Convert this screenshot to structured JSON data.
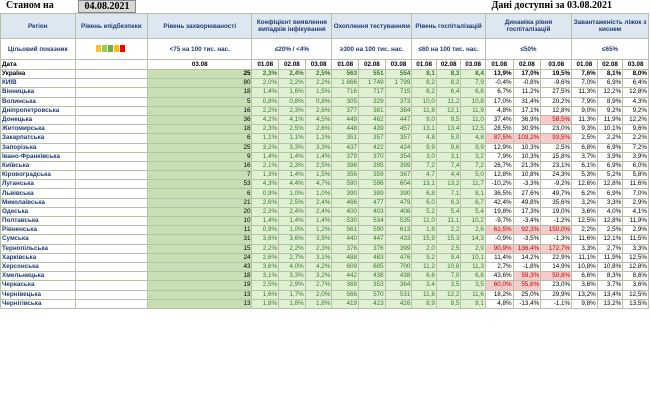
{
  "header": {
    "as_of_label": "Станом на",
    "as_of_date": "04.08.2021",
    "available_label": "Дані доступні за 03.08.2021"
  },
  "columns": {
    "region": "Регіон",
    "level": "Рівень епідбезпеки",
    "incidence": "Рівень захворюваності",
    "detection": "Коефіцієнт виявлення випадків інфікування",
    "testing": "Охоплення тестуванням",
    "hosp": "Рівень госпіталізацій",
    "dyn": "Динаміка рівня госпіталізацій",
    "beds": "Завантаженість ліжок з киснем"
  },
  "targets": {
    "label": "Цільовий показник",
    "incidence": "<75 на 100 тис. нас.",
    "detection": "≤20% / <4%",
    "testing": "≥300 на 100 тис. нас.",
    "hosp": "≤60 на 100 тис. нас.",
    "dyn": "≤50%",
    "beds": "≤65%"
  },
  "lamp_colors": [
    "#f4c430",
    "#92d050",
    "#70ad47",
    "#ffc000",
    "#ff0000"
  ],
  "date_row": {
    "label": "Дата",
    "d1": "03.08",
    "d2": "01.08",
    "d3": "02.08",
    "d4": "03.08"
  },
  "rows": [
    {
      "r": "Україна",
      "l": "",
      "i": "25",
      "det": [
        "2,3%",
        "2,4%",
        "2,5%"
      ],
      "t": [
        "563",
        "551",
        "554"
      ],
      "h": [
        "8,1",
        "8,3",
        "8,4"
      ],
      "dy": [
        "13,9%",
        "17,0%",
        "19,5%"
      ],
      "b": [
        "7,6%",
        "8,1%",
        "8,0%"
      ]
    },
    {
      "r": "КИЇВ",
      "l": "",
      "i": "80",
      "det": [
        "2,0%",
        "2,2%",
        "2,2%"
      ],
      "t": [
        "1 866",
        "1 749",
        "1 799"
      ],
      "h": [
        "8,2",
        "8,2",
        "7,9"
      ],
      "dy": [
        "-0,4%",
        "-0,8%",
        "-9,6%"
      ],
      "b": [
        "7,0%",
        "6,9%",
        "6,4%"
      ]
    },
    {
      "r": "Вінницька",
      "l": "",
      "i": "18",
      "det": [
        "1,4%",
        "1,6%",
        "1,5%"
      ],
      "t": [
        "716",
        "717",
        "715"
      ],
      "h": [
        "6,2",
        "6,4",
        "6,6"
      ],
      "dy": [
        "6,7%",
        "11,2%",
        "27,5%"
      ],
      "b": [
        "11,3%",
        "12,2%",
        "12,8%"
      ]
    },
    {
      "r": "Волинська",
      "l": "",
      "i": "5",
      "det": [
        "0,8%",
        "0,8%",
        "0,8%"
      ],
      "t": [
        "305",
        "329",
        "373"
      ],
      "h": [
        "10,0",
        "11,2",
        "10,8"
      ],
      "dy": [
        "17,0%",
        "31,4%",
        "20,2%"
      ],
      "b": [
        "7,9%",
        "8,9%",
        "4,3%"
      ]
    },
    {
      "r": "Дніпропетровська",
      "l": "",
      "i": "16",
      "det": [
        "2,2%",
        "2,3%",
        "2,6%"
      ],
      "t": [
        "377",
        "381",
        "384"
      ],
      "h": [
        "11,8",
        "12,1",
        "11,9"
      ],
      "dy": [
        "4,8%",
        "17,1%",
        "12,8%"
      ],
      "b": [
        "9,0%",
        "9,2%",
        "9,2%"
      ]
    },
    {
      "r": "Донецька",
      "l": "",
      "i": "36",
      "det": [
        "4,2%",
        "4,1%",
        "4,5%"
      ],
      "t": [
        "449",
        "462",
        "447"
      ],
      "h": [
        "9,0",
        "9,5",
        "11,0"
      ],
      "dy": [
        "37,4%",
        "36,9%",
        "58,5%"
      ],
      "b": [
        "11,3%",
        "11,9%",
        "12,2%"
      ]
    },
    {
      "r": "Житомирська",
      "l": "",
      "i": "18",
      "det": [
        "2,3%",
        "2,5%",
        "2,6%"
      ],
      "t": [
        "448",
        "439",
        "457"
      ],
      "h": [
        "13,1",
        "13,4",
        "12,5"
      ],
      "dy": [
        "28,5%",
        "30,9%",
        "23,0%"
      ],
      "b": [
        "9,3%",
        "10,1%",
        "9,6%"
      ]
    },
    {
      "r": "Закарпатська",
      "l": "",
      "i": "6",
      "det": [
        "1,1%",
        "1,1%",
        "1,1%"
      ],
      "t": [
        "351",
        "357",
        "357"
      ],
      "h": [
        "4,8",
        "5,0",
        "4,8"
      ],
      "dy": [
        "87,5%",
        "103,2%",
        "93,5%"
      ],
      "b": [
        "2,5%",
        "2,2%",
        "2,2%"
      ]
    },
    {
      "r": "Запорізька",
      "l": "",
      "i": "25",
      "det": [
        "3,2%",
        "3,3%",
        "3,3%"
      ],
      "t": [
        "437",
        "422",
        "424"
      ],
      "h": [
        "9,9",
        "9,6",
        "9,9"
      ],
      "dy": [
        "12,9%",
        "10,3%",
        "2,5%"
      ],
      "b": [
        "6,8%",
        "6,9%",
        "7,2%"
      ]
    },
    {
      "r": "Івано-Франківська",
      "l": "",
      "i": "9",
      "det": [
        "1,4%",
        "1,4%",
        "1,4%"
      ],
      "t": [
        "379",
        "370",
        "354"
      ],
      "h": [
        "3,0",
        "3,1",
        "3,2"
      ],
      "dy": [
        "7,9%",
        "10,3%",
        "15,8%"
      ],
      "b": [
        "3,7%",
        "3,9%",
        "3,9%"
      ]
    },
    {
      "r": "Київська",
      "l": "",
      "i": "16",
      "det": [
        "2,1%",
        "2,3%",
        "2,5%"
      ],
      "t": [
        "398",
        "395",
        "399"
      ],
      "h": [
        "7,2",
        "7,4",
        "7,2"
      ],
      "dy": [
        "26,7%",
        "21,3%",
        "23,1%"
      ],
      "b": [
        "6,1%",
        "6,9%",
        "6,0%"
      ]
    },
    {
      "r": "Кіровоградська",
      "l": "",
      "i": "7",
      "det": [
        "1,3%",
        "1,4%",
        "1,5%"
      ],
      "t": [
        "356",
        "359",
        "367"
      ],
      "h": [
        "4,7",
        "4,4",
        "5,0"
      ],
      "dy": [
        "12,8%",
        "10,8%",
        "24,3%"
      ],
      "b": [
        "5,3%",
        "5,2%",
        "5,8%"
      ]
    },
    {
      "r": "Луганська",
      "l": "",
      "i": "53",
      "det": [
        "4,3%",
        "4,4%",
        "4,7%"
      ],
      "t": [
        "590",
        "596",
        "604"
      ],
      "h": [
        "13,1",
        "13,2",
        "11,7"
      ],
      "dy": [
        "-10,2%",
        "-3,3%",
        "-9,2%"
      ],
      "b": [
        "12,6%",
        "12,8%",
        "11,6%"
      ]
    },
    {
      "r": "Львівська",
      "l": "",
      "i": "6",
      "det": [
        "0,9%",
        "1,0%",
        "1,0%"
      ],
      "t": [
        "390",
        "389",
        "390"
      ],
      "h": [
        "6,8",
        "7,1",
        "8,1"
      ],
      "dy": [
        "36,5%",
        "27,6%",
        "49,7%"
      ],
      "b": [
        "6,2%",
        "6,9%",
        "7,0%"
      ]
    },
    {
      "r": "Миколаївська",
      "l": "",
      "i": "21",
      "det": [
        "2,6%",
        "2,5%",
        "2,4%"
      ],
      "t": [
        "466",
        "477",
        "479"
      ],
      "h": [
        "6,0",
        "6,3",
        "6,7"
      ],
      "dy": [
        "42,4%",
        "49,8%",
        "35,6%"
      ],
      "b": [
        "3,2%",
        "3,3%",
        "2,9%"
      ]
    },
    {
      "r": "Одеська",
      "l": "",
      "i": "20",
      "det": [
        "2,3%",
        "2,4%",
        "2,4%"
      ],
      "t": [
        "400",
        "403",
        "406"
      ],
      "h": [
        "5,2",
        "5,4",
        "5,4"
      ],
      "dy": [
        "19,8%",
        "17,3%",
        "19,0%"
      ],
      "b": [
        "3,6%",
        "4,0%",
        "4,1%"
      ]
    },
    {
      "r": "Полтавська",
      "l": "",
      "i": "10",
      "det": [
        "1,4%",
        "1,4%",
        "1,4%"
      ],
      "t": [
        "530",
        "534",
        "535"
      ],
      "h": [
        "11,0",
        "11,1",
        "10,2"
      ],
      "dy": [
        "-9,7%",
        "-3,4%",
        "-1,2%"
      ],
      "b": [
        "12,5%",
        "12,8%",
        "11,9%"
      ]
    },
    {
      "r": "Рівненська",
      "l": "",
      "i": "11",
      "det": [
        "0,9%",
        "1,0%",
        "1,2%"
      ],
      "t": [
        "561",
        "590",
        "613"
      ],
      "h": [
        "1,8",
        "2,2",
        "2,6"
      ],
      "dy": [
        "61,5%",
        "92,3%",
        "150,0%"
      ],
      "b": [
        "2,2%",
        "2,5%",
        "2,9%"
      ]
    },
    {
      "r": "Сумська",
      "l": "",
      "i": "31",
      "det": [
        "3,6%",
        "3,6%",
        "3,9%"
      ],
      "t": [
        "440",
        "447",
        "433"
      ],
      "h": [
        "15,9",
        "15,3",
        "14,3"
      ],
      "dy": [
        "-0,9%",
        "-3,5%",
        "-1,3%"
      ],
      "b": [
        "11,6%",
        "12,1%",
        "11,5%"
      ]
    },
    {
      "r": "Тернопільська",
      "l": "",
      "i": "15",
      "det": [
        "2,2%",
        "2,2%",
        "2,3%"
      ],
      "t": [
        "376",
        "376",
        "399"
      ],
      "h": [
        "2,0",
        "2,5",
        "2,9"
      ],
      "dy": [
        "90,9%",
        "136,4%",
        "172,7%"
      ],
      "b": [
        "3,3%",
        "2,7%",
        "3,3%"
      ]
    },
    {
      "r": "Харківська",
      "l": "",
      "i": "24",
      "det": [
        "2,6%",
        "2,7%",
        "3,1%"
      ],
      "t": [
        "488",
        "483",
        "476"
      ],
      "h": [
        "9,2",
        "9,4",
        "10,1"
      ],
      "dy": [
        "11,4%",
        "14,2%",
        "22,9%"
      ],
      "b": [
        "11,1%",
        "11,9%",
        "12,5%"
      ]
    },
    {
      "r": "Херсонська",
      "l": "",
      "i": "43",
      "det": [
        "3,6%",
        "4,0%",
        "4,2%"
      ],
      "t": [
        "609",
        "685",
        "700"
      ],
      "h": [
        "11,2",
        "10,8",
        "11,3"
      ],
      "dy": [
        "2,7%",
        "-1,8%",
        "14,9%"
      ],
      "b": [
        "10,8%",
        "10,8%",
        "12,8%"
      ]
    },
    {
      "r": "Хмельницька",
      "l": "",
      "i": "18",
      "det": [
        "3,1%",
        "3,3%",
        "3,2%"
      ],
      "t": [
        "442",
        "438",
        "438"
      ],
      "h": [
        "6,6",
        "7,0",
        "6,6"
      ],
      "dy": [
        "43,6%",
        "59,3%",
        "50,8%"
      ],
      "b": [
        "6,6%",
        "8,3%",
        "8,6%"
      ]
    },
    {
      "r": "Черкаська",
      "l": "",
      "i": "19",
      "det": [
        "2,5%",
        "2,9%",
        "2,7%"
      ],
      "t": [
        "369",
        "353",
        "364"
      ],
      "h": [
        "3,4",
        "3,5",
        "3,5"
      ],
      "dy": [
        "60,0%",
        "55,6%",
        "23,0%"
      ],
      "b": [
        "3,6%",
        "3,7%",
        "3,6%"
      ]
    },
    {
      "r": "Чернівецька",
      "l": "",
      "i": "13",
      "det": [
        "1,6%",
        "1,7%",
        "2,0%"
      ],
      "t": [
        "566",
        "570",
        "531"
      ],
      "h": [
        "11,6",
        "12,2",
        "11,6"
      ],
      "dy": [
        "18,2%",
        "25,0%",
        "29,9%"
      ],
      "b": [
        "13,2%",
        "13,4%",
        "12,5%"
      ]
    },
    {
      "r": "Чернігівська",
      "l": "",
      "i": "13",
      "det": [
        "1,8%",
        "1,8%",
        "1,8%"
      ],
      "t": [
        "419",
        "423",
        "426"
      ],
      "h": [
        "8,9",
        "8,5",
        "9,1"
      ],
      "dy": [
        "4,8%",
        "-13,4%",
        "-1,1%"
      ],
      "b": [
        "9,8%",
        "13,2%",
        "13,5%"
      ]
    }
  ]
}
